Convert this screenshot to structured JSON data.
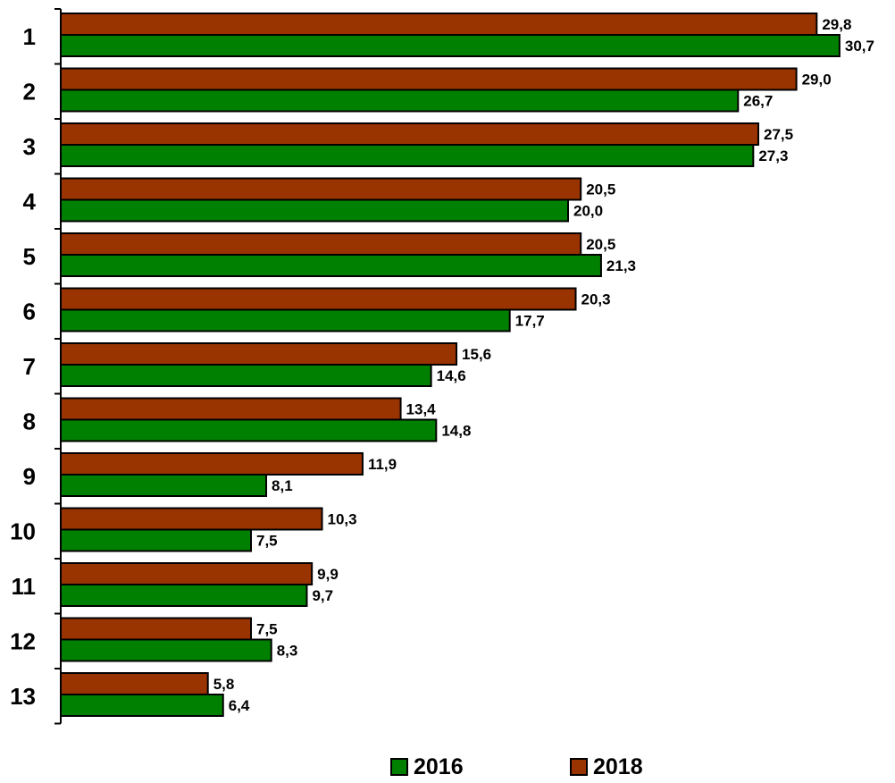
{
  "chart_data": {
    "type": "bar",
    "orientation": "horizontal",
    "categories": [
      "1",
      "2",
      "3",
      "4",
      "5",
      "6",
      "7",
      "8",
      "9",
      "10",
      "11",
      "12",
      "13"
    ],
    "series": [
      {
        "name": "2018",
        "color": "#993300",
        "values": [
          29.8,
          29.0,
          27.5,
          20.5,
          20.5,
          20.3,
          15.6,
          13.4,
          11.9,
          10.3,
          9.9,
          7.5,
          5.8
        ],
        "labels": [
          "29,8",
          "29,0",
          "27,5",
          "20,5",
          "20,5",
          "20,3",
          "15,6",
          "13,4",
          "11,9",
          "10,3",
          "9,9",
          "7,5",
          "5,8"
        ]
      },
      {
        "name": "2016",
        "color": "#008000",
        "values": [
          30.7,
          26.7,
          27.3,
          20.0,
          21.3,
          17.7,
          14.6,
          14.8,
          8.1,
          7.5,
          9.7,
          8.3,
          6.4
        ],
        "labels": [
          "30,7",
          "26,7",
          "27,3",
          "20,0",
          "21,3",
          "17,7",
          "14,6",
          "14,8",
          "8,1",
          "7,5",
          "9,7",
          "8,3",
          "6,4"
        ]
      }
    ],
    "xlim": [
      0,
      30.7
    ],
    "grid": false,
    "legend": {
      "position": "bottom",
      "order": [
        "2016",
        "2018"
      ]
    },
    "title": "",
    "xlabel": "",
    "ylabel": ""
  },
  "legend": {
    "label_2016": "2016",
    "label_2018": "2018"
  }
}
